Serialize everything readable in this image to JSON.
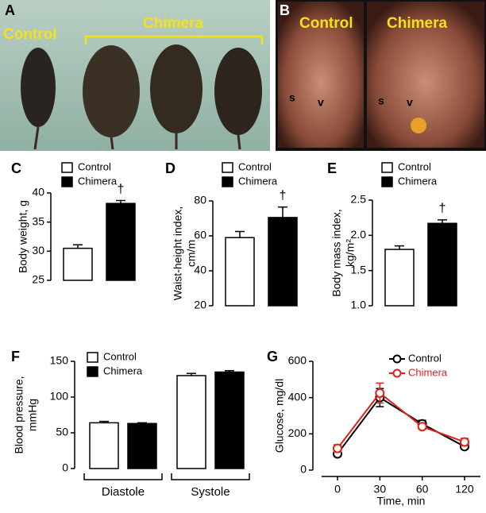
{
  "panels": {
    "A": {
      "label": "A",
      "left": "Control",
      "right": "Chimera"
    },
    "B": {
      "label": "B",
      "left": "Control",
      "right": "Chimera",
      "marks": [
        "s",
        "v",
        "s",
        "v"
      ]
    }
  },
  "chart_data": [
    {
      "type": "bar",
      "panel_label": "C",
      "ylabel": "Body weight, g",
      "categories": [
        null
      ],
      "series": [
        {
          "name": "Control",
          "color": "#ffffff",
          "values": [
            30.5
          ],
          "errors": [
            0.6
          ]
        },
        {
          "name": "Chimera",
          "color": "#000000",
          "values": [
            38.2
          ],
          "errors": [
            0.5
          ]
        }
      ],
      "annotation": "†",
      "ylim": [
        25,
        40
      ],
      "yticks": [
        25,
        30,
        35,
        40
      ]
    },
    {
      "type": "bar",
      "panel_label": "D",
      "ylabel": [
        "Waist-height index,",
        "cm/m"
      ],
      "categories": [
        null
      ],
      "series": [
        {
          "name": "Control",
          "color": "#ffffff",
          "values": [
            59
          ],
          "errors": [
            3.5
          ]
        },
        {
          "name": "Chimera",
          "color": "#000000",
          "values": [
            70.5
          ],
          "errors": [
            6
          ]
        }
      ],
      "annotation": "†",
      "ylim": [
        20,
        80
      ],
      "yticks": [
        20,
        40,
        60,
        80
      ]
    },
    {
      "type": "bar",
      "panel_label": "E",
      "ylabel": [
        "Body mass index,",
        "kg/m²"
      ],
      "categories": [
        null
      ],
      "series": [
        {
          "name": "Control",
          "color": "#ffffff",
          "values": [
            1.8
          ],
          "errors": [
            0.05
          ]
        },
        {
          "name": "Chimera",
          "color": "#000000",
          "values": [
            2.17
          ],
          "errors": [
            0.05
          ]
        }
      ],
      "annotation": "†",
      "ylim": [
        1.0,
        2.5
      ],
      "yticks": [
        {
          "value": 1,
          "label": "1.0"
        },
        1.5,
        {
          "value": 2,
          "label": "2.0"
        },
        2.5
      ]
    },
    {
      "type": "bar",
      "panel_label": "F",
      "ylabel": [
        "Blood pressure,",
        "mmHg"
      ],
      "categories": [
        "Diastole",
        "Systole"
      ],
      "series": [
        {
          "name": "Control",
          "color": "#ffffff",
          "values": [
            64,
            130
          ],
          "errors": [
            2,
            3
          ]
        },
        {
          "name": "Chimera",
          "color": "#000000",
          "values": [
            63,
            135
          ],
          "errors": [
            1,
            2
          ]
        }
      ],
      "ylim": [
        0,
        150
      ],
      "yticks": [
        0,
        50,
        100,
        150
      ]
    },
    {
      "type": "line",
      "panel_label": "G",
      "ylabel": "Glucose, mg/dl",
      "xlabel": "Time, min",
      "categories": [
        "0",
        "30",
        "60",
        "120"
      ],
      "series": [
        {
          "name": "Control",
          "color": "#000000",
          "values": [
            90,
            400,
            255,
            130
          ],
          "errors": [
            15,
            50,
            20,
            15
          ]
        },
        {
          "name": "Chimera",
          "color": "#e0201b",
          "values": [
            120,
            425,
            240,
            155
          ],
          "errors": [
            20,
            55,
            15,
            20
          ]
        }
      ],
      "ylim": [
        0,
        600
      ],
      "yticks": [
        0,
        200,
        400,
        600
      ]
    }
  ]
}
